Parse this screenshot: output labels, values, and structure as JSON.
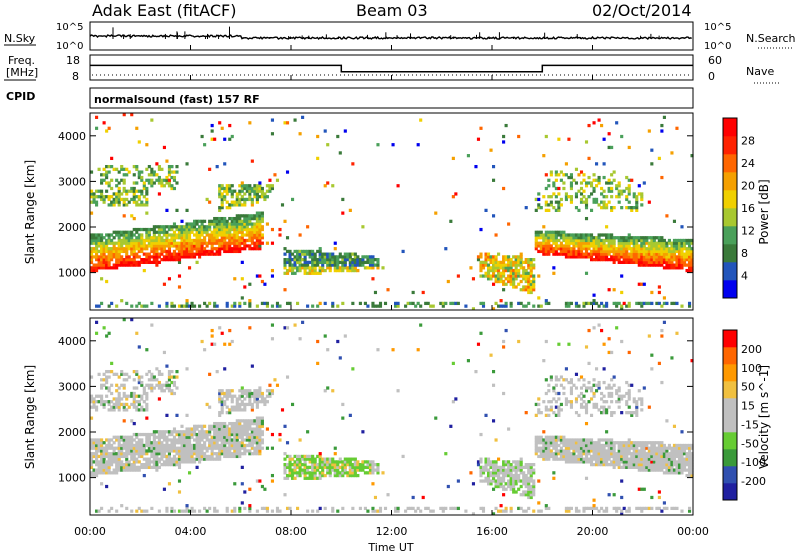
{
  "title": {
    "station": "Adak East (fitACF)",
    "beam": "Beam 03",
    "date": "02/Oct/2014"
  },
  "top_panels": {
    "nsky_label": "N.Sky",
    "nsearch_label": "N.Search",
    "nsky_ticks": [
      "10^5",
      "10^0"
    ],
    "nsearch_ticks": [
      "10^5",
      "10^0"
    ],
    "freq_label_line1": "Freq.",
    "freq_label_line2": "[MHz]",
    "freq_ticks": [
      "18",
      "8"
    ],
    "nave_label": "Nave",
    "nave_ticks": [
      "60",
      "0"
    ],
    "cpid_label": "CPID",
    "cpid_text": "normalsound (fast) 157 RF"
  },
  "colors": {
    "power_scale": [
      "#0000ee",
      "#2255bb",
      "#3a7a3a",
      "#4aa05a",
      "#a8c830",
      "#f0d000",
      "#f5a000",
      "#ff6600",
      "#ff2200",
      "#ff0000"
    ],
    "velocity_scale": [
      "#2020a0",
      "#3050b0",
      "#3a9a3a",
      "#66cc33",
      "#c0c0c0",
      "#c0c0c0",
      "#f0c040",
      "#ff9900",
      "#ff6600",
      "#ff0000"
    ]
  },
  "chart_data": [
    {
      "type": "heatmap",
      "name": "power",
      "ylabel": "Slant Range [km]",
      "yticks": [
        "4000",
        "3000",
        "2000",
        "1000"
      ],
      "ylim": [
        180,
        4500
      ],
      "colorbar_label": "Power [dB]",
      "colorbar_ticks": [
        "28",
        "24",
        "20",
        "16",
        "12",
        "8",
        "4"
      ],
      "clim": [
        0,
        30
      ]
    },
    {
      "type": "heatmap",
      "name": "velocity",
      "ylabel": "Slant Range [km]",
      "yticks": [
        "4000",
        "3000",
        "2000",
        "1000"
      ],
      "ylim": [
        180,
        4500
      ],
      "colorbar_label": "Velocity [m s^-1]",
      "colorbar_ticks": [
        "200",
        "100",
        "50",
        "15",
        "-15",
        "-50",
        "-100",
        "-200"
      ]
    },
    {
      "type": "line",
      "name": "frequency",
      "x": [
        "00:00",
        "10:00",
        "10:00",
        "18:00",
        "18:00",
        "24:00"
      ],
      "values": [
        14,
        14,
        11,
        11,
        14,
        14
      ]
    }
  ],
  "xaxis": {
    "label": "Time UT",
    "ticks": [
      "00:00",
      "04:00",
      "08:00",
      "12:00",
      "16:00",
      "20:00",
      "00:00"
    ]
  }
}
